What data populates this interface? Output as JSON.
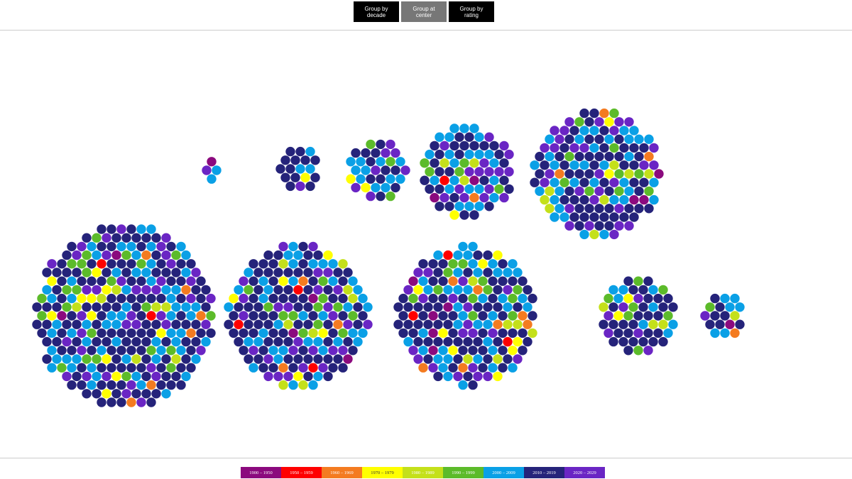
{
  "buttons": [
    {
      "label": "Group by decade",
      "selected": false
    },
    {
      "label": "Group at center",
      "selected": true
    },
    {
      "label": "Group by rating",
      "selected": false
    }
  ],
  "legend": [
    {
      "label": "1900 – 1950",
      "color": "#8b0a7e"
    },
    {
      "label": "1950 – 1959",
      "color": "#ff0000"
    },
    {
      "label": "1960 – 1969",
      "color": "#f47b20"
    },
    {
      "label": "1970 – 1979",
      "color": "#ffff00"
    },
    {
      "label": "1980 – 1989",
      "color": "#c4e01a"
    },
    {
      "label": "1990 – 1999",
      "color": "#5cbb2a"
    },
    {
      "label": "2000 – 2009",
      "color": "#0aa0e6"
    },
    {
      "label": "2010 – 2019",
      "color": "#25237a"
    },
    {
      "label": "2020 – 2029",
      "color": "#6a25c4"
    }
  ]
}
